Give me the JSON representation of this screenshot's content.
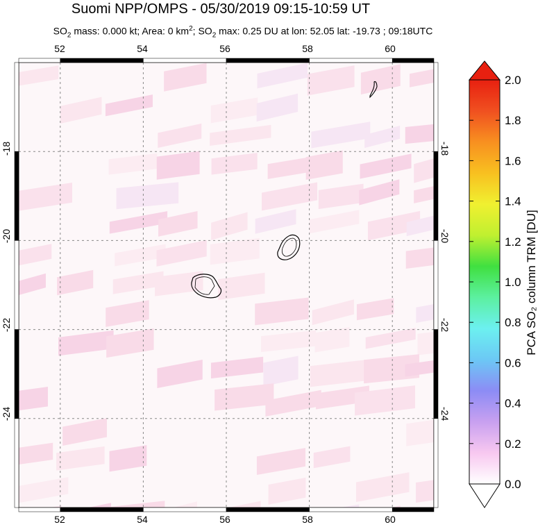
{
  "title": "Suomi NPP/OMPS - 05/30/2019 09:15-10:59 UT",
  "subtitle": {
    "prefix": "SO",
    "sub1": "2",
    "mass": " mass: 0.000 kt; Area: 0 km",
    "sup": "2",
    "mid": "; SO",
    "sub2": "2",
    "rest": " max: 0.25 DU at lon: 52.05 lat: -19.73 ; 09:18UTC"
  },
  "map": {
    "lon_range": [
      51,
      61
    ],
    "lat_range": [
      -26,
      -16
    ],
    "lon_ticks": [
      "52",
      "54",
      "56",
      "58",
      "60"
    ],
    "lat_ticks": [
      "-18",
      "-20",
      "-22",
      "-24"
    ],
    "lon_values": [
      52,
      54,
      56,
      58,
      60
    ],
    "lat_values": [
      -18,
      -20,
      -22,
      -24
    ]
  },
  "colorbar": {
    "label": "PCA SO₂ column TRM [DU]",
    "ticks": [
      "0.0",
      "0.2",
      "0.4",
      "0.6",
      "0.8",
      "1.0",
      "1.2",
      "1.4",
      "1.6",
      "1.8",
      "2.0"
    ],
    "min": 0,
    "max": 2,
    "colors": [
      "#ffffff",
      "#f8c8f0",
      "#c8a0f0",
      "#8c8cf5",
      "#6cc8f5",
      "#6cf0f0",
      "#5cf0a0",
      "#40e040",
      "#c0f030",
      "#f0f030",
      "#f8c020",
      "#f89020",
      "#f05020",
      "#e82010"
    ]
  }
}
